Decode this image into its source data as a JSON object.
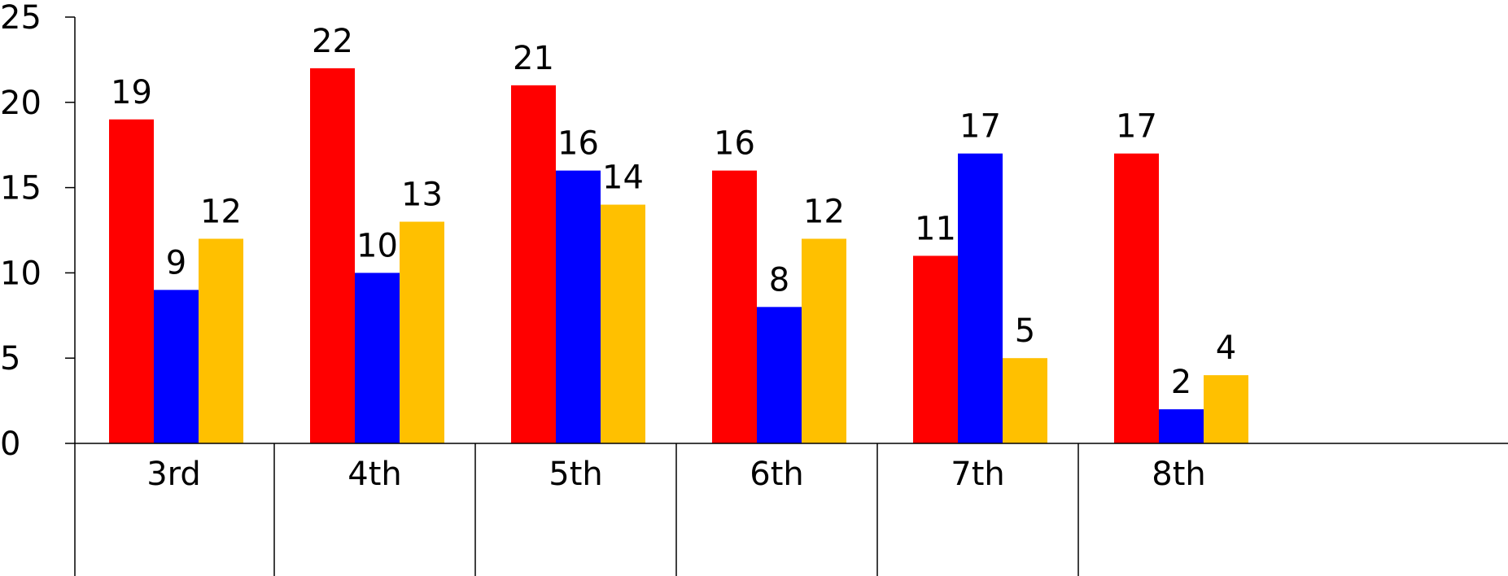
{
  "chart_data": {
    "type": "bar",
    "categories": [
      "3rd",
      "4th",
      "5th",
      "6th",
      "7th",
      "8th"
    ],
    "series": [
      {
        "values": [
          19,
          22,
          21,
          16,
          11,
          17
        ],
        "color": "#ff0000"
      },
      {
        "values": [
          9,
          10,
          16,
          8,
          17,
          2
        ],
        "color": "#0000ff"
      },
      {
        "values": [
          12,
          13,
          14,
          12,
          5,
          4
        ],
        "color": "#ffc000"
      }
    ],
    "ylim": [
      0,
      25
    ],
    "yticks": [
      0,
      5,
      10,
      15,
      20,
      25
    ],
    "title": "",
    "xlabel": "",
    "ylabel": "",
    "grid": false,
    "data_labels": true
  }
}
